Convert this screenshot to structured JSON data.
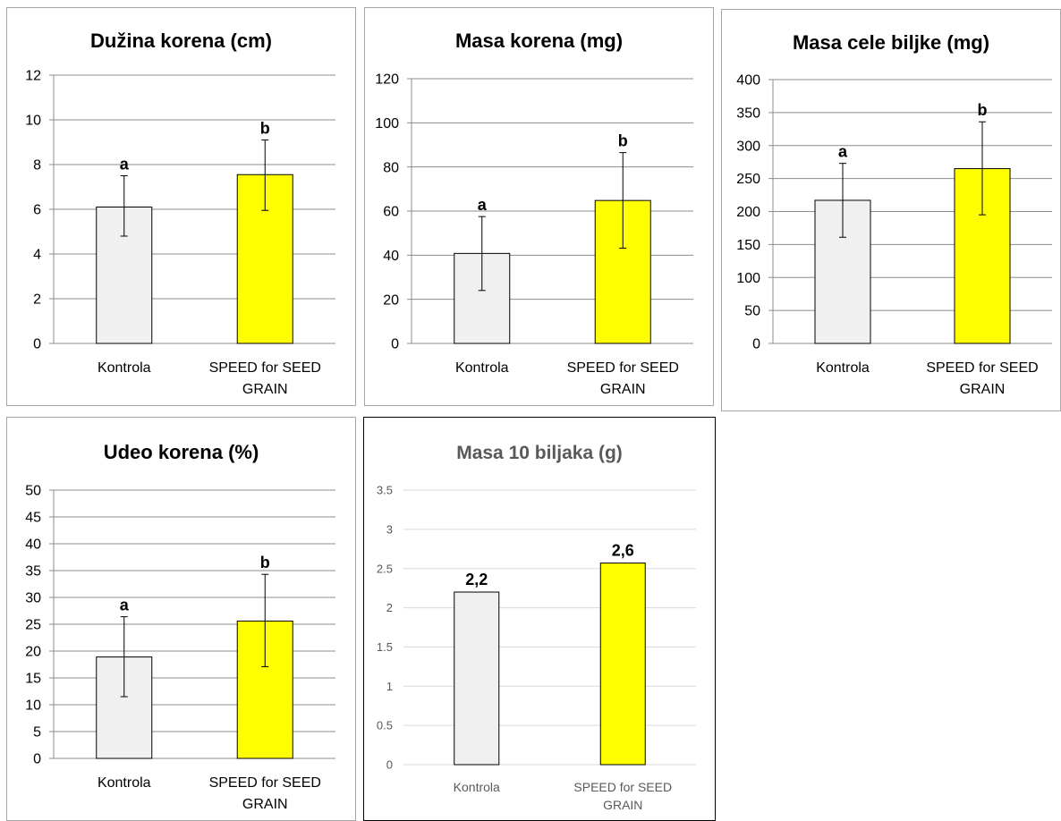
{
  "chart_data": [
    {
      "type": "bar",
      "title": "Dužina korena (cm)",
      "categories": [
        "Kontrola",
        "SPEED for SEED GRAIN"
      ],
      "values": [
        6.1,
        7.55
      ],
      "error_low": [
        4.8,
        5.95
      ],
      "error_high": [
        7.5,
        9.1
      ],
      "significance_labels": [
        "a",
        "b"
      ],
      "ylim": [
        0,
        12
      ],
      "yticks": [
        0,
        2,
        4,
        6,
        8,
        10,
        12
      ],
      "colors": [
        "#f0f0f0",
        "#ffff00"
      ],
      "grid": true
    },
    {
      "type": "bar",
      "title": "Masa korena (mg)",
      "categories": [
        "Kontrola",
        "SPEED for SEED GRAIN"
      ],
      "values": [
        40.8,
        64.8
      ],
      "error_low": [
        24,
        43.2
      ],
      "error_high": [
        57.5,
        86.5
      ],
      "significance_labels": [
        "a",
        "b"
      ],
      "ylim": [
        0,
        120
      ],
      "yticks": [
        0,
        20,
        40,
        60,
        80,
        100,
        120
      ],
      "colors": [
        "#f0f0f0",
        "#ffff00"
      ],
      "grid": true
    },
    {
      "type": "bar",
      "title": "Masa cele biljke (mg)",
      "categories": [
        "Kontrola",
        "SPEED for SEED GRAIN"
      ],
      "values": [
        217,
        265
      ],
      "error_low": [
        161,
        195
      ],
      "error_high": [
        273,
        336
      ],
      "significance_labels": [
        "a",
        "b"
      ],
      "ylim": [
        0,
        400
      ],
      "yticks": [
        0,
        50,
        100,
        150,
        200,
        250,
        300,
        350,
        400
      ],
      "colors": [
        "#f0f0f0",
        "#ffff00"
      ],
      "grid": true
    },
    {
      "type": "bar",
      "title": "Udeo korena (%)",
      "categories": [
        "Kontrola",
        "SPEED for SEED GRAIN"
      ],
      "values": [
        18.9,
        25.6
      ],
      "error_low": [
        11.5,
        17.1
      ],
      "error_high": [
        26.4,
        34.3
      ],
      "significance_labels": [
        "a",
        "b"
      ],
      "ylim": [
        0,
        50
      ],
      "yticks": [
        0,
        5,
        10,
        15,
        20,
        25,
        30,
        35,
        40,
        45,
        50
      ],
      "colors": [
        "#f0f0f0",
        "#ffff00"
      ],
      "grid": true
    },
    {
      "type": "bar",
      "title": "Masa 10 biljaka (g)",
      "categories": [
        "Kontrola",
        "SPEED for SEED GRAIN"
      ],
      "values": [
        2.2,
        2.57
      ],
      "data_labels": [
        "2,2",
        "2,6"
      ],
      "ylim": [
        0,
        3.5
      ],
      "yticks": [
        "0",
        "0.5",
        "1",
        "1.5",
        "2",
        "2.5",
        "3",
        "3.5"
      ],
      "colors": [
        "#f0f0f0",
        "#ffff00"
      ],
      "grid": true
    }
  ]
}
